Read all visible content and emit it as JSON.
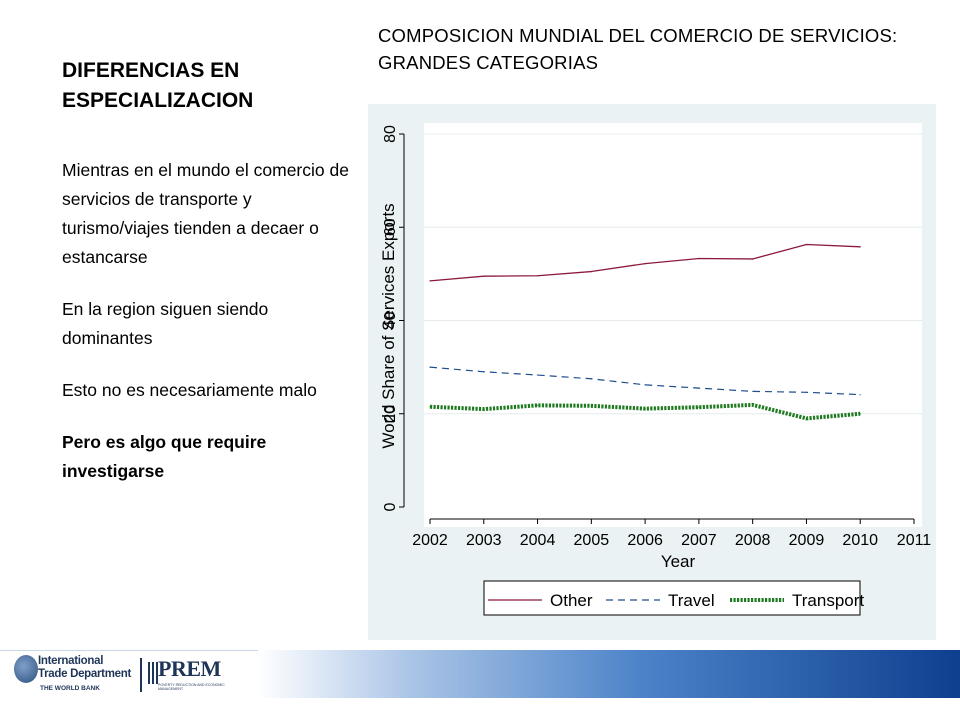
{
  "slide": {
    "title": "DIFERENCIAS EN ESPECIALIZACION",
    "chart_heading": "COMPOSICION MUNDIAL DEL COMERCIO DE SERVICIOS: GRANDES CATEGORIAS",
    "bullets": [
      "Mientras en el mundo el comercio de servicios de transporte y turismo/viajes tienden a decaer o estancarse",
      "En la region siguen siendo dominantes",
      "Esto no es necesariamente malo",
      "Pero es algo que require investigarse"
    ]
  },
  "footer": {
    "org_line1": "International",
    "org_line2": "Trade Department",
    "org_line3": "THE WORLD BANK",
    "partner": "PREM",
    "partner_sub": "POVERTY REDUCTION AND ECONOMIC MANAGEMENT"
  },
  "chart_data": {
    "type": "line",
    "xlabel": "Year",
    "ylabel": "World Share of Services Exports",
    "xlim": [
      2002,
      2011
    ],
    "ylim": [
      0,
      80
    ],
    "x_ticks": [
      2002,
      2003,
      2004,
      2005,
      2006,
      2007,
      2008,
      2009,
      2010,
      2011
    ],
    "y_ticks": [
      0,
      20,
      40,
      60,
      80
    ],
    "grid": true,
    "legend_position": "bottom",
    "x": [
      2002,
      2003,
      2004,
      2005,
      2006,
      2007,
      2008,
      2009,
      2010
    ],
    "series": [
      {
        "name": "Other",
        "values": [
          48.5,
          49.5,
          49.6,
          50.5,
          52.2,
          53.3,
          53.2,
          56.3,
          55.8
        ],
        "color": "#8b1a3a",
        "style": "solid"
      },
      {
        "name": "Travel",
        "values": [
          30.0,
          29.0,
          28.3,
          27.5,
          26.2,
          25.5,
          24.8,
          24.6,
          24.1
        ],
        "color": "#1f4e8c",
        "style": "dashed"
      },
      {
        "name": "Transport",
        "values": [
          21.5,
          21.0,
          21.8,
          21.7,
          21.1,
          21.4,
          21.9,
          19.0,
          20.0
        ],
        "color": "#1e7a1e",
        "style": "dotted-thick"
      }
    ]
  }
}
